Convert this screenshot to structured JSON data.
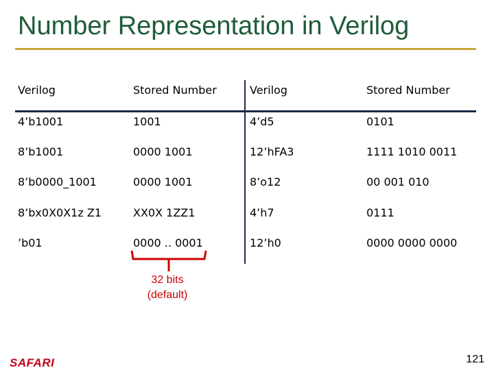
{
  "title": "Number Representation in Verilog",
  "table": {
    "headers": [
      "Verilog",
      "Stored Number",
      "Verilog",
      "Stored Number"
    ],
    "rows": [
      [
        "4’b1001",
        "1001",
        "4’d5",
        "0101"
      ],
      [
        "8’b1001",
        "0000 1001",
        "12’hFA3",
        "1111 1010 0011"
      ],
      [
        "8’b0000_1001",
        "0000 1001",
        "8’o12",
        "00 001 010"
      ],
      [
        "8’bx0X0X1z Z1",
        "XX0X 1ZZ1",
        "4’h7",
        "0111"
      ],
      [
        "’b01",
        "0000 .. 0001",
        "12’h0",
        "0000 0000 0000"
      ]
    ]
  },
  "annotation": {
    "line1": "32 bits",
    "line2": "(default)"
  },
  "footer": {
    "logo": "SAFARI",
    "page_number": "121"
  },
  "colors": {
    "title": "#1f5c3a",
    "title_rule": "#c8a838",
    "table_rules": "#1b2a4a",
    "annotation": "#cc0000",
    "logo": "#c0001a"
  }
}
